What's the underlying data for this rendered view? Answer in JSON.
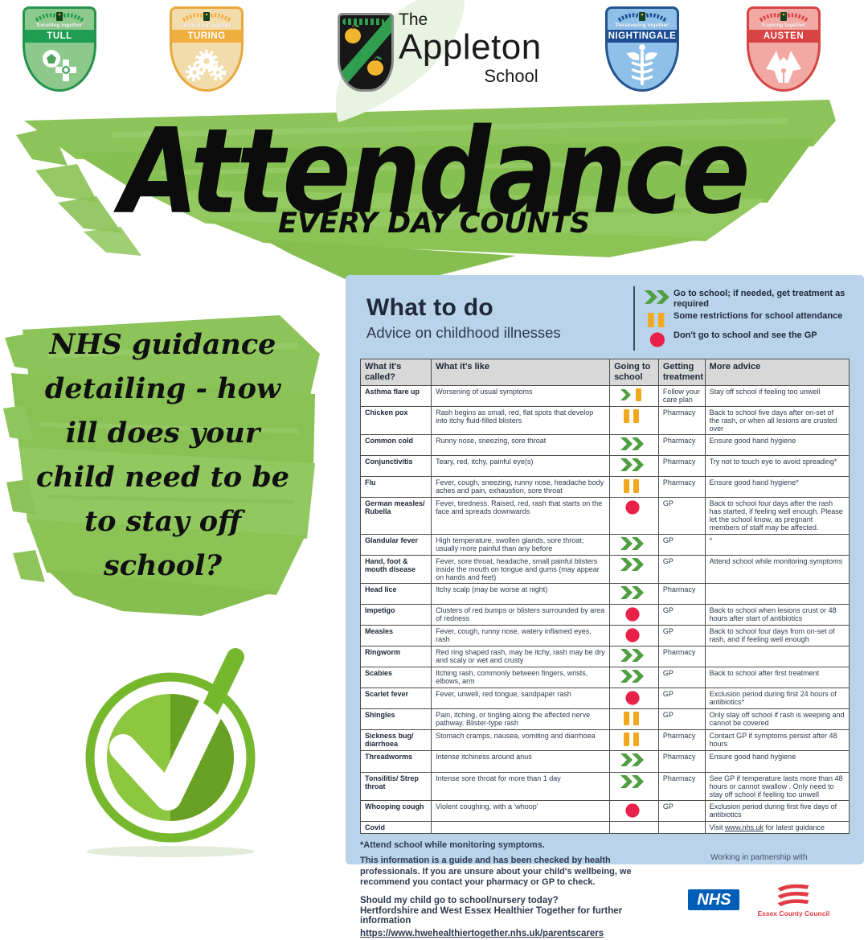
{
  "badges": [
    {
      "id": "tull",
      "name": "TULL",
      "motto": "'Excelling together'",
      "fill": "#8dc88c",
      "border": "#27934d",
      "banner": "#1f9d52"
    },
    {
      "id": "turing",
      "name": "TURING",
      "motto": "'Innovating together'",
      "fill": "#f3dcab",
      "border": "#e8a93c",
      "banner": "#efae3d"
    },
    {
      "id": "nightingale",
      "name": "NIGHTINGALE",
      "motto": "'Persevering together'",
      "fill": "#8fc0e9",
      "border": "#24548f",
      "banner": "#1d4e94"
    },
    {
      "id": "austen",
      "name": "AUSTEN",
      "motto": "'Aspiring together'",
      "fill": "#f2a9a4",
      "border": "#d64545",
      "banner": "#d84343"
    }
  ],
  "school_logo": {
    "the": "The",
    "name": "Appleton",
    "school": "School"
  },
  "hero": {
    "title": "Attendance",
    "subtitle": "EVERY DAY COUNTS"
  },
  "intro_text": "NHS guidance detailing - how ill does your child need to be to stay off school?",
  "poster": {
    "title": "What to do",
    "subtitle": "Advice on childhood illnesses",
    "legend": [
      {
        "icon": "go",
        "label": "Go to school; if needed, get treatment as required"
      },
      {
        "icon": "pause",
        "label": "Some restrictions for school attendance"
      },
      {
        "icon": "stop",
        "label": "Don't go to school and see the GP"
      }
    ],
    "columns": [
      "What it's called?",
      "What it's like",
      "Going to school",
      "Getting treatment",
      "More advice"
    ],
    "rows": [
      {
        "name": "Asthma flare up",
        "like": "Worsening of usual symptoms",
        "going": "go_pause",
        "treatment": "Follow your care plan",
        "advice": "Stay off school if feeling too unwell"
      },
      {
        "name": "Chicken pox",
        "like": "Rash begins as small, red, flat spots that develop into itchy fluid-filled blisters",
        "going": "pause",
        "treatment": "Pharmacy",
        "advice": "Back to school five days after on-set of the rash, or when all lesions are crusted over"
      },
      {
        "name": "Common cold",
        "like": "Runny nose, sneezing, sore throat",
        "going": "go",
        "treatment": "Pharmacy",
        "advice": "Ensure good hand hygiene"
      },
      {
        "name": "Conjunctivitis",
        "like": "Teary, red, itchy, painful eye(s)",
        "going": "go",
        "treatment": "Pharmacy",
        "advice": "Try not to touch eye to avoid spreading*"
      },
      {
        "name": "Flu",
        "like": "Fever, cough, sneezing, runny nose, headache body aches and pain, exhaustion, sore throat",
        "going": "pause",
        "treatment": "Pharmacy",
        "advice": "Ensure good hand hygiene*"
      },
      {
        "name": "German measles/ Rubella",
        "like": "Fever, tiredness. Raised, red, rash that starts on the face and spreads downwards",
        "going": "stop",
        "treatment": "GP",
        "advice": "Back to school four days after the rash has started, if feeling well enough. Please let the school know, as pregnant members of staff may be affected."
      },
      {
        "name": "Glandular fever",
        "like": "High temperature, swollen glands, sore throat; usually more painful than any before",
        "going": "go",
        "treatment": "GP",
        "advice": "*"
      },
      {
        "name": "Hand, foot & mouth disease",
        "like": "Fever, sore throat, headache, small painful blisters inside the mouth on tongue and gums (may appear on hands and feet)",
        "going": "go",
        "treatment": "GP",
        "advice": "Attend school while monitoring symptoms"
      },
      {
        "name": "Head lice",
        "like": "Itchy scalp (may be worse at night)",
        "going": "go",
        "treatment": "Pharmacy",
        "advice": ""
      },
      {
        "name": "Impetigo",
        "like": "Clusters of red bumps or blisters surrounded by area of redness",
        "going": "stop",
        "treatment": "GP",
        "advice": "Back to school when lesions crust or 48 hours after start of antibiotics"
      },
      {
        "name": "Measles",
        "like": "Fever, cough, runny nose, watery inflamed eyes, rash",
        "going": "stop",
        "treatment": "GP",
        "advice": "Back to school four days from on-set of rash, and if feeling well enough"
      },
      {
        "name": "Ringworm",
        "like": "Red ring shaped rash, may be itchy, rash may be dry and scaly or wet and crusty",
        "going": "go",
        "treatment": "Pharmacy",
        "advice": ""
      },
      {
        "name": "Scabies",
        "like": "Itching rash, commonly between fingers, wrists, elbows, arm",
        "going": "go",
        "treatment": "GP",
        "advice": "Back to school after first treatment"
      },
      {
        "name": "Scarlet fever",
        "like": "Fever, unwell, red tongue, sandpaper rash",
        "going": "stop",
        "treatment": "GP",
        "advice": "Exclusion period during first 24 hours of antibiotics*"
      },
      {
        "name": "Shingles",
        "like": "Pain, itching, or tingling along the affected nerve pathway. Blister-type rash",
        "going": "pause",
        "treatment": "GP",
        "advice": "Only stay off school if rash is weeping and cannot be covered"
      },
      {
        "name": "Sickness bug/ diarrhoea",
        "like": "Stomach cramps, nausea, vomiting and diarrhoea",
        "going": "pause",
        "treatment": "Pharmacy",
        "advice": "Contact GP if symptoms persist after 48 hours"
      },
      {
        "name": "Threadworms",
        "like": "Intense itchiness around anus",
        "going": "go",
        "treatment": "Pharmacy",
        "advice": "Ensure good hand hygiene"
      },
      {
        "name": "Tonsilitis/ Strep throat",
        "like": "Intense sore throat for more than 1 day",
        "going": "go",
        "treatment": "Pharmacy",
        "advice": "See GP if temperature lasts more than 48 hours or cannot swallow . Only need to stay off school if feeling too unwell"
      },
      {
        "name": "Whooping cough",
        "like": "Violent coughing, with a 'whoop'",
        "going": "stop",
        "treatment": "GP",
        "advice": "Exclusion period during first five days of antibiotics"
      },
      {
        "name": "Covid",
        "like": "",
        "going": "none",
        "treatment": "",
        "advice": "Visit www.nhs.uk for latest guidance"
      }
    ],
    "footnote": "*Attend school while monitoring symptoms.",
    "disclaimer": "This information is a guide and has been checked by health professionals. If you are unsure about your child's wellbeing, we recommend you contact your pharmacy or GP to check.",
    "question": "Should my child go to school/nursery today?",
    "more_info": "Hertfordshire and West Essex Healthier Together for further information",
    "link": "https://www.hwehealthiertogether.nhs.uk/parentscarers",
    "partnership": "Working in partnership with",
    "nhs_logo": "NHS",
    "council_logo": "Essex County Council"
  },
  "colors": {
    "brush_green": "#8dc45a",
    "brush_green_dark": "#84bc4e",
    "brush_green_light": "#9bcf6c",
    "go": "#4f9e3f",
    "pause": "#f2a81d",
    "stop": "#e82148",
    "check_ring": "#76b82d",
    "check_fill": "#8dc63f",
    "check_dark": "#68a124",
    "nhs_blue": "#005EB8",
    "essex_red": "#e23a44",
    "panel_blue": "#b9d3ea",
    "ink": "#2e3a4e"
  }
}
